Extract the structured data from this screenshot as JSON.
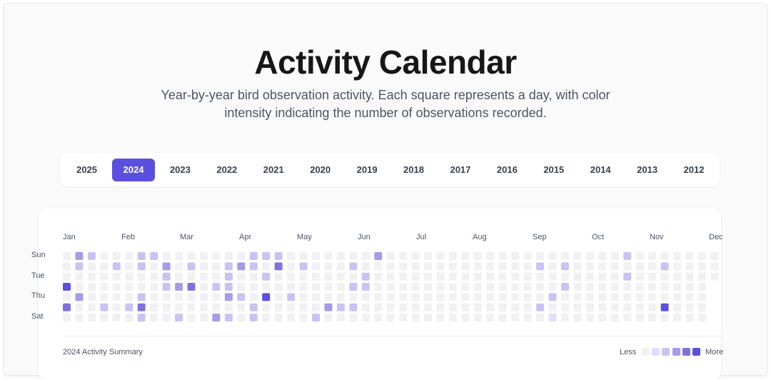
{
  "header": {
    "title": "Activity Calendar",
    "subtitle": "Year-by-year bird observation activity. Each square represents a day, with color intensity indicating the number of observations recorded."
  },
  "years": [
    "2025",
    "2024",
    "2023",
    "2022",
    "2021",
    "2020",
    "2019",
    "2018",
    "2017",
    "2016",
    "2015",
    "2014",
    "2013",
    "2012"
  ],
  "selected_year": "2024",
  "calendar": {
    "months": [
      "Jan",
      "Feb",
      "Mar",
      "Apr",
      "May",
      "Jun",
      "Jul",
      "Aug",
      "Sep",
      "Oct",
      "Nov",
      "Dec"
    ],
    "day_labels": [
      "Sun",
      "Tue",
      "Thu",
      "Sat"
    ],
    "summary": "2024 Activity Summary"
  },
  "legend": {
    "less": "Less",
    "more": "More",
    "levels": 5
  },
  "colors": {
    "accent": "#5b4fe0",
    "level0": "#f1f1f4",
    "level1": "#e1defa",
    "level2": "#c9c3f4",
    "level3": "#a59be9",
    "level4": "#7f72df",
    "level5": "#5b4fe0"
  },
  "activity": [
    {
      "week": 1,
      "day": 0,
      "level": 3
    },
    {
      "week": 2,
      "day": 0,
      "level": 2
    },
    {
      "week": 6,
      "day": 0,
      "level": 2
    },
    {
      "week": 7,
      "day": 0,
      "level": 2
    },
    {
      "week": 15,
      "day": 0,
      "level": 2
    },
    {
      "week": 16,
      "day": 0,
      "level": 2
    },
    {
      "week": 17,
      "day": 0,
      "level": 2
    },
    {
      "week": 25,
      "day": 0,
      "level": 3
    },
    {
      "week": 45,
      "day": 0,
      "level": 2
    },
    {
      "week": 1,
      "day": 1,
      "level": 2
    },
    {
      "week": 4,
      "day": 1,
      "level": 2
    },
    {
      "week": 6,
      "day": 1,
      "level": 2
    },
    {
      "week": 8,
      "day": 1,
      "level": 3
    },
    {
      "week": 10,
      "day": 1,
      "level": 2
    },
    {
      "week": 13,
      "day": 1,
      "level": 2
    },
    {
      "week": 14,
      "day": 1,
      "level": 3
    },
    {
      "week": 15,
      "day": 1,
      "level": 2
    },
    {
      "week": 17,
      "day": 1,
      "level": 4
    },
    {
      "week": 19,
      "day": 1,
      "level": 2
    },
    {
      "week": 23,
      "day": 1,
      "level": 2
    },
    {
      "week": 38,
      "day": 1,
      "level": 2
    },
    {
      "week": 40,
      "day": 1,
      "level": 2
    },
    {
      "week": 48,
      "day": 1,
      "level": 2
    },
    {
      "week": 8,
      "day": 2,
      "level": 2
    },
    {
      "week": 13,
      "day": 2,
      "level": 2
    },
    {
      "week": 16,
      "day": 2,
      "level": 2
    },
    {
      "week": 24,
      "day": 2,
      "level": 2
    },
    {
      "week": 45,
      "day": 2,
      "level": 2
    },
    {
      "week": 0,
      "day": 3,
      "level": 5
    },
    {
      "week": 8,
      "day": 3,
      "level": 2
    },
    {
      "week": 9,
      "day": 3,
      "level": 3
    },
    {
      "week": 10,
      "day": 3,
      "level": 4
    },
    {
      "week": 12,
      "day": 3,
      "level": 2
    },
    {
      "week": 13,
      "day": 3,
      "level": 2
    },
    {
      "week": 23,
      "day": 3,
      "level": 2
    },
    {
      "week": 24,
      "day": 3,
      "level": 2
    },
    {
      "week": 40,
      "day": 3,
      "level": 2
    },
    {
      "week": 1,
      "day": 4,
      "level": 3
    },
    {
      "week": 6,
      "day": 4,
      "level": 2
    },
    {
      "week": 13,
      "day": 4,
      "level": 3
    },
    {
      "week": 14,
      "day": 4,
      "level": 2
    },
    {
      "week": 16,
      "day": 4,
      "level": 5
    },
    {
      "week": 18,
      "day": 4,
      "level": 2
    },
    {
      "week": 39,
      "day": 4,
      "level": 2
    },
    {
      "week": 0,
      "day": 5,
      "level": 4
    },
    {
      "week": 3,
      "day": 5,
      "level": 2
    },
    {
      "week": 5,
      "day": 5,
      "level": 2
    },
    {
      "week": 6,
      "day": 5,
      "level": 4
    },
    {
      "week": 15,
      "day": 5,
      "level": 2
    },
    {
      "week": 21,
      "day": 5,
      "level": 3
    },
    {
      "week": 22,
      "day": 5,
      "level": 2
    },
    {
      "week": 23,
      "day": 5,
      "level": 2
    },
    {
      "week": 38,
      "day": 5,
      "level": 2
    },
    {
      "week": 48,
      "day": 5,
      "level": 5
    },
    {
      "week": 6,
      "day": 6,
      "level": 2
    },
    {
      "week": 9,
      "day": 6,
      "level": 2
    },
    {
      "week": 12,
      "day": 6,
      "level": 3
    },
    {
      "week": 13,
      "day": 6,
      "level": 2
    },
    {
      "week": 15,
      "day": 6,
      "level": 2
    },
    {
      "week": 20,
      "day": 6,
      "level": 2
    },
    {
      "week": 39,
      "day": 6,
      "level": 1
    }
  ]
}
